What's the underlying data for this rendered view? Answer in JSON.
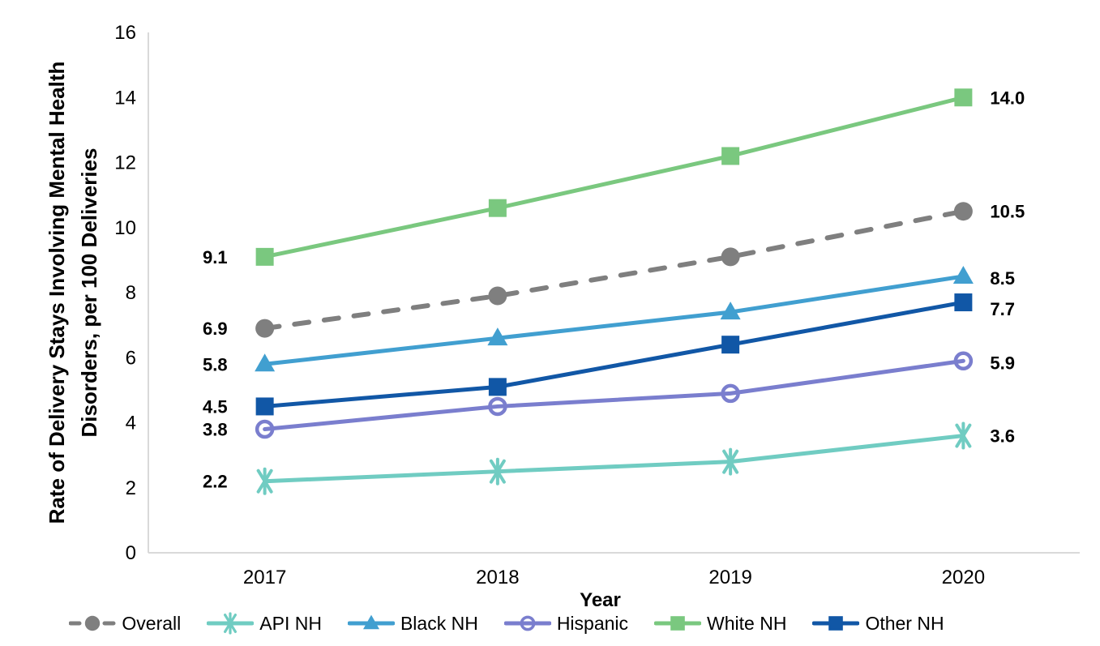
{
  "chart_data": {
    "type": "line",
    "title": "",
    "x": [
      "2017",
      "2018",
      "2019",
      "2020"
    ],
    "xlabel": "Year",
    "ylabel": "Rate of Delivery Stays Involving Mental Health Disorders, per 100 Deliveries",
    "ylabel_lines": [
      "Rate of Delivery Stays Involving Mental Health",
      "Disorders, per 100 Deliveries"
    ],
    "ylim": [
      0,
      16
    ],
    "yticks": [
      0,
      2,
      4,
      6,
      8,
      10,
      12,
      14,
      16
    ],
    "grid": false,
    "legend_position": "bottom",
    "axis_color": "#D9D9D9",
    "text_color": "#000000",
    "series": [
      {
        "name": "Overall",
        "values": [
          6.9,
          7.9,
          9.1,
          10.5
        ],
        "point_labels": [
          "6.9",
          null,
          null,
          "10.5"
        ],
        "color": "#7F7F7F",
        "marker": "circle",
        "line_style": "dashed",
        "last_label_dy": 0
      },
      {
        "name": "API NH",
        "values": [
          2.2,
          2.5,
          2.8,
          3.6
        ],
        "point_labels": [
          "2.2",
          null,
          null,
          "3.6"
        ],
        "color": "#70CCC2",
        "marker": "asterisk",
        "line_style": "solid",
        "last_label_dy": 0
      },
      {
        "name": "Black NH",
        "values": [
          5.8,
          6.6,
          7.4,
          8.5
        ],
        "point_labels": [
          "5.8",
          null,
          null,
          "8.5"
        ],
        "color": "#419FD0",
        "marker": "triangle",
        "line_style": "solid",
        "last_label_dy": 2
      },
      {
        "name": "Hispanic",
        "values": [
          3.8,
          4.5,
          4.9,
          5.9
        ],
        "point_labels": [
          "3.8",
          null,
          null,
          "5.9"
        ],
        "color": "#7A7ECE",
        "marker": "open-circle",
        "line_style": "solid",
        "last_label_dy": 2
      },
      {
        "name": "White NH",
        "values": [
          9.1,
          10.6,
          12.2,
          14.0
        ],
        "point_labels": [
          "9.1",
          null,
          null,
          "14.0"
        ],
        "color": "#7AC87F",
        "marker": "square",
        "line_style": "solid",
        "last_label_dy": 0
      },
      {
        "name": "Other NH",
        "values": [
          4.5,
          5.1,
          6.4,
          7.7
        ],
        "point_labels": [
          "4.5",
          null,
          null,
          "7.7"
        ],
        "color": "#1157A6",
        "marker": "square",
        "line_style": "solid",
        "last_label_dy": 8
      }
    ]
  }
}
